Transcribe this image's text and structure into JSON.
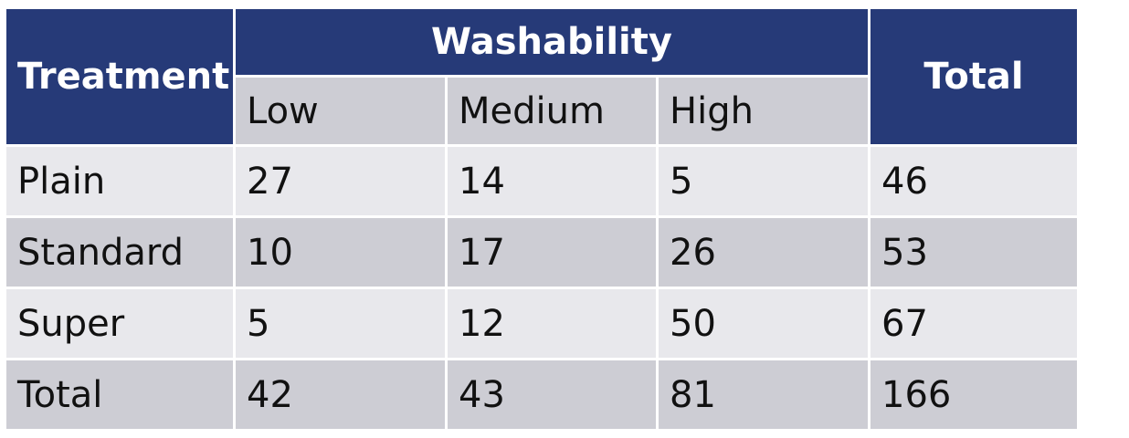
{
  "table": {
    "header": {
      "treatment": "Treatment",
      "group": "Washability",
      "total": "Total",
      "levels": [
        "Low",
        "Medium",
        "High"
      ]
    },
    "rows": [
      {
        "label": "Plain",
        "low": "27",
        "medium": "14",
        "high": "5",
        "total": "46"
      },
      {
        "label": "Standard",
        "low": "10",
        "medium": "17",
        "high": "26",
        "total": "53"
      },
      {
        "label": "Super",
        "low": "5",
        "medium": "12",
        "high": "50",
        "total": "67"
      },
      {
        "label": "Total",
        "low": "42",
        "medium": "43",
        "high": "81",
        "total": "166"
      }
    ]
  },
  "colors": {
    "header_bg": "#263a78",
    "header_text": "#ffffff",
    "row_light": "#e8e8ec",
    "row_dark": "#cdcdd4"
  }
}
